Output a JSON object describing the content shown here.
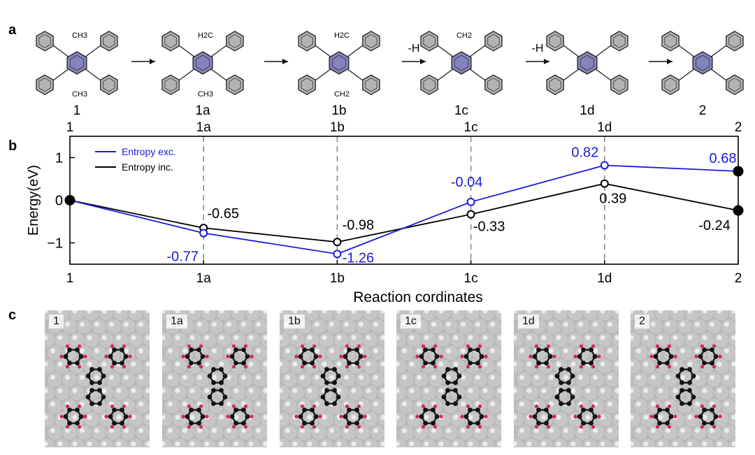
{
  "panels": {
    "a": "a",
    "b": "b",
    "c": "c"
  },
  "panel_a": {
    "arrow_labels": [
      "-H",
      "-H"
    ],
    "molecules": [
      {
        "id": "1",
        "label": "1",
        "substituents": [
          "CH3",
          "CH3"
        ]
      },
      {
        "id": "1a",
        "label": "1a",
        "substituents": [
          "H2C",
          "CH3"
        ]
      },
      {
        "id": "1b",
        "label": "1b",
        "substituents": [
          "H2C",
          "CH2"
        ]
      },
      {
        "id": "1c",
        "label": "1c",
        "substituents": [
          "CH2"
        ]
      },
      {
        "id": "1d",
        "label": "1d",
        "substituents": []
      },
      {
        "id": "2",
        "label": "2",
        "substituents": []
      }
    ]
  },
  "chart_data": {
    "type": "line",
    "xlabel": "Reaction cordinates",
    "ylabel": "Energy(eV)",
    "categories": [
      "1",
      "1a",
      "1b",
      "1c",
      "1d",
      "2"
    ],
    "top_tick_labels": [
      "1",
      "1a",
      "1b",
      "1c",
      "1d",
      "2"
    ],
    "ylim": [
      -1.5,
      1.5
    ],
    "yticks": [
      -1,
      0,
      1
    ],
    "ytick_labels": [
      "−1",
      "0",
      "1"
    ],
    "legend_position": "top-left",
    "series": [
      {
        "name": "Entropy exc.",
        "color": "#1a1adb",
        "values": [
          0,
          -0.77,
          -1.26,
          -0.04,
          0.82,
          0.68
        ],
        "labels": [
          "",
          "-0.77",
          "-1.26",
          "-0.04",
          "0.82",
          "0.68"
        ]
      },
      {
        "name": "Entropy inc.",
        "color": "#000000",
        "values": [
          0,
          -0.65,
          -0.98,
          -0.33,
          0.39,
          -0.24
        ],
        "labels": [
          "",
          "-0.65",
          "-0.98",
          "-0.33",
          "0.39",
          "-0.24"
        ]
      }
    ]
  },
  "panel_c": {
    "tiles": [
      {
        "label": "1"
      },
      {
        "label": "1a"
      },
      {
        "label": "1b"
      },
      {
        "label": "1c"
      },
      {
        "label": "1d"
      },
      {
        "label": "2"
      }
    ]
  },
  "colors": {
    "blue": "#1a1adb",
    "benzene_fill": "#b3b3b3",
    "central_ring": "#8583be",
    "substrate": "#c6c6c6",
    "atom_c": "#111111",
    "atom_h": "#d6246a"
  }
}
